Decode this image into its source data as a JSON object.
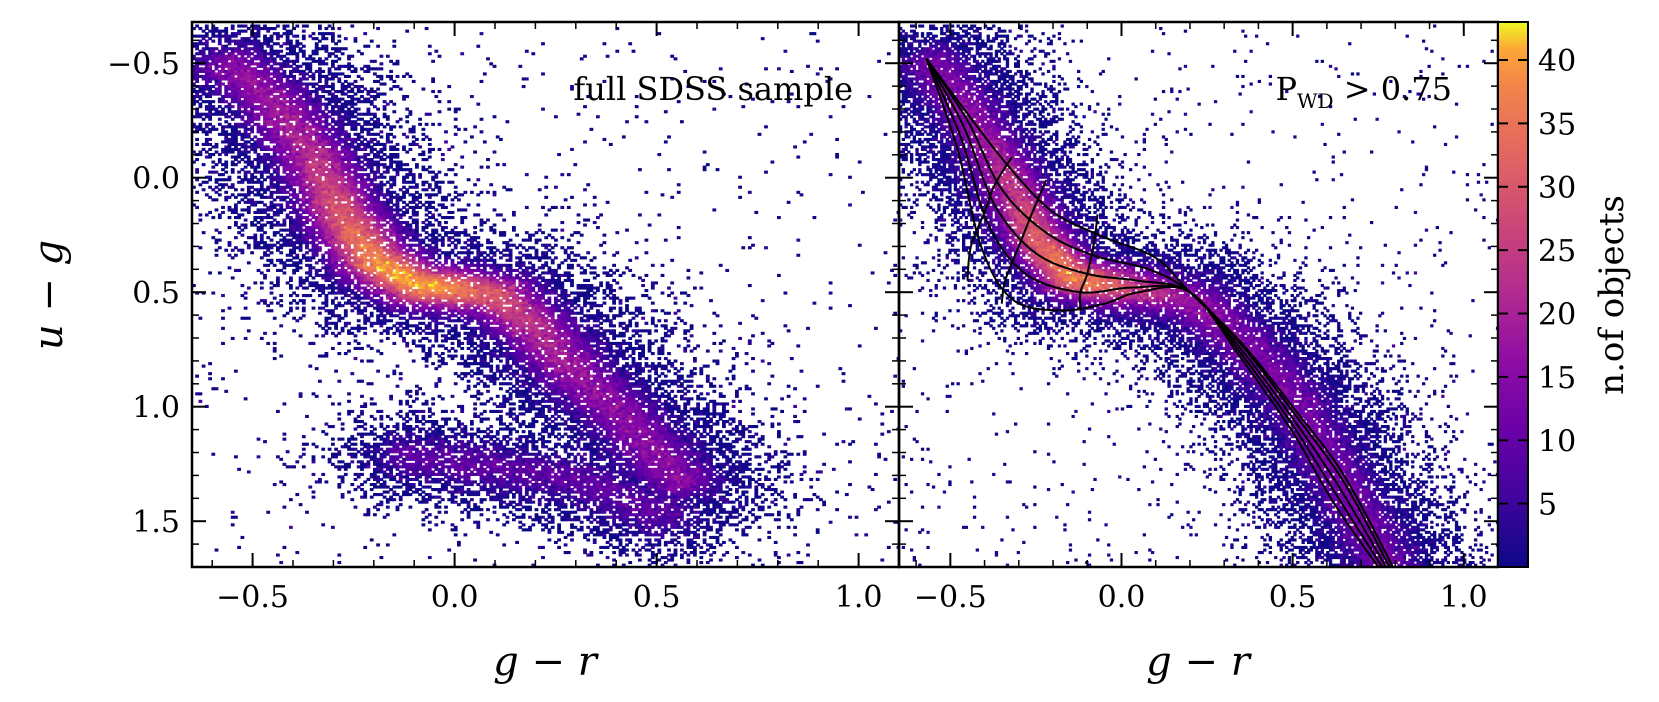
{
  "chart_data": [
    {
      "type": "heatmap",
      "annotation": "full SDSS sample",
      "xlabel": "g − r",
      "ylabel": "u − g",
      "xlim": [
        -0.65,
        1.1
      ],
      "ylim": [
        1.7,
        -0.68
      ],
      "y_inverted": true,
      "x_ticks": [
        -0.5,
        0.0,
        0.5,
        1.0
      ],
      "x_tick_labels": [
        "−0.5",
        "0.0",
        "0.5",
        "1.0"
      ],
      "y_ticks": [
        -0.5,
        0.0,
        0.5,
        1.0,
        1.5
      ],
      "y_tick_labels": [
        "−0.5",
        "0.0",
        "0.5",
        "1.0",
        "1.5"
      ],
      "colormap": "plasma",
      "density_ridge": [
        [
          -0.55,
          -0.5
        ],
        [
          -0.45,
          -0.35
        ],
        [
          -0.35,
          -0.1
        ],
        [
          -0.28,
          0.15
        ],
        [
          -0.2,
          0.35
        ],
        [
          -0.1,
          0.45
        ],
        [
          0.0,
          0.47
        ],
        [
          0.1,
          0.5
        ],
        [
          0.2,
          0.65
        ],
        [
          0.3,
          0.85
        ],
        [
          0.4,
          1.0
        ],
        [
          0.55,
          1.3
        ]
      ],
      "secondary_clump": [
        [
          -0.1,
          1.2
        ],
        [
          0.1,
          1.25
        ],
        [
          0.3,
          1.3
        ],
        [
          0.5,
          1.45
        ]
      ]
    },
    {
      "type": "heatmap",
      "annotation": {
        "main": "P",
        "sub": "WD",
        "rest": " > 0.75"
      },
      "xlabel": "g − r",
      "xlim": [
        -0.65,
        1.1
      ],
      "ylim": [
        1.7,
        -0.68
      ],
      "y_inverted": true,
      "x_ticks": [
        -0.5,
        0.0,
        0.5,
        1.0
      ],
      "x_tick_labels": [
        "−0.5",
        "0.0",
        "0.5",
        "1.0"
      ],
      "colormap": "plasma",
      "density_ridge": [
        [
          -0.55,
          -0.5
        ],
        [
          -0.45,
          -0.3
        ],
        [
          -0.35,
          -0.05
        ],
        [
          -0.25,
          0.25
        ],
        [
          -0.15,
          0.42
        ],
        [
          -0.05,
          0.45
        ],
        [
          0.05,
          0.47
        ],
        [
          0.2,
          0.52
        ],
        [
          0.35,
          0.7
        ],
        [
          0.5,
          0.95
        ],
        [
          0.65,
          1.35
        ],
        [
          0.78,
          1.7
        ]
      ],
      "model_tracks": [
        [
          [
            -0.57,
            -0.52
          ],
          [
            -0.45,
            -0.28
          ],
          [
            -0.33,
            -0.05
          ],
          [
            -0.2,
            0.15
          ],
          [
            -0.05,
            0.26
          ],
          [
            0.1,
            0.35
          ],
          [
            0.2,
            0.5
          ],
          [
            0.35,
            0.72
          ],
          [
            0.5,
            1.0
          ],
          [
            0.65,
            1.3
          ],
          [
            0.8,
            1.72
          ]
        ],
        [
          [
            -0.57,
            -0.52
          ],
          [
            -0.45,
            -0.25
          ],
          [
            -0.35,
            0.05
          ],
          [
            -0.22,
            0.24
          ],
          [
            -0.08,
            0.34
          ],
          [
            0.08,
            0.4
          ],
          [
            0.2,
            0.5
          ],
          [
            0.35,
            0.73
          ],
          [
            0.5,
            1.02
          ],
          [
            0.65,
            1.33
          ],
          [
            0.79,
            1.72
          ]
        ],
        [
          [
            -0.57,
            -0.52
          ],
          [
            -0.46,
            -0.22
          ],
          [
            -0.37,
            0.12
          ],
          [
            -0.25,
            0.33
          ],
          [
            -0.1,
            0.42
          ],
          [
            0.05,
            0.45
          ],
          [
            0.2,
            0.5
          ],
          [
            0.35,
            0.75
          ],
          [
            0.5,
            1.05
          ],
          [
            0.64,
            1.36
          ],
          [
            0.78,
            1.72
          ]
        ],
        [
          [
            -0.57,
            -0.52
          ],
          [
            -0.47,
            -0.18
          ],
          [
            -0.39,
            0.2
          ],
          [
            -0.28,
            0.42
          ],
          [
            -0.12,
            0.5
          ],
          [
            0.03,
            0.48
          ],
          [
            0.2,
            0.5
          ],
          [
            0.35,
            0.77
          ],
          [
            0.5,
            1.08
          ],
          [
            0.63,
            1.39
          ],
          [
            0.77,
            1.72
          ]
        ],
        [
          [
            -0.57,
            -0.52
          ],
          [
            -0.48,
            -0.13
          ],
          [
            -0.41,
            0.3
          ],
          [
            -0.32,
            0.53
          ],
          [
            -0.18,
            0.58
          ],
          [
            -0.05,
            0.55
          ],
          [
            0.05,
            0.5
          ],
          [
            0.2,
            0.5
          ],
          [
            0.35,
            0.79
          ],
          [
            0.5,
            1.11
          ],
          [
            0.62,
            1.42
          ],
          [
            0.76,
            1.72
          ]
        ]
      ],
      "model_crossing_tracks": [
        [
          [
            -0.32,
            -0.09
          ],
          [
            -0.37,
            0.03
          ],
          [
            -0.4,
            0.15
          ],
          [
            -0.44,
            0.3
          ],
          [
            -0.45,
            0.45
          ]
        ],
        [
          [
            -0.22,
            0.01
          ],
          [
            -0.26,
            0.15
          ],
          [
            -0.3,
            0.3
          ],
          [
            -0.34,
            0.45
          ],
          [
            -0.35,
            0.55
          ]
        ],
        [
          [
            -0.07,
            0.16
          ],
          [
            -0.08,
            0.28
          ],
          [
            -0.1,
            0.42
          ],
          [
            -0.12,
            0.5
          ],
          [
            -0.12,
            0.58
          ]
        ]
      ]
    }
  ],
  "colorbar": {
    "label": "n.of objects",
    "min": 0,
    "max": 43,
    "ticks": [
      5,
      10,
      15,
      20,
      25,
      30,
      35,
      40
    ],
    "tick_labels": [
      "5",
      "10",
      "15",
      "20",
      "25",
      "30",
      "35",
      "40"
    ]
  }
}
